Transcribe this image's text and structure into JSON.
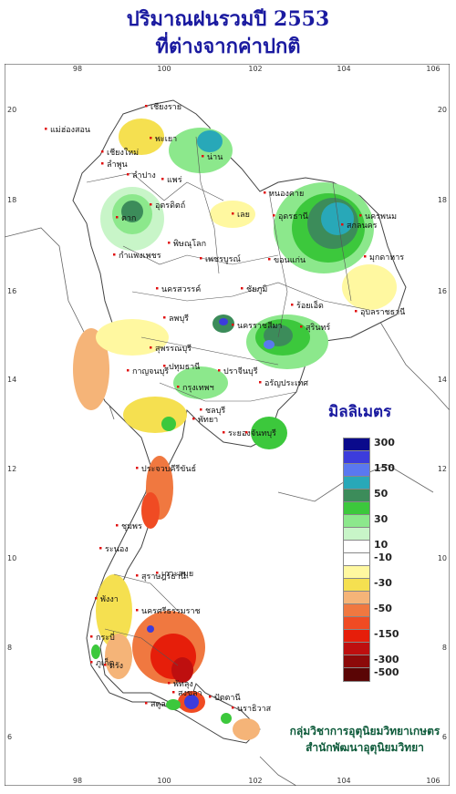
{
  "title_line1": "ปริมาณฝนรวมปี  2553",
  "title_line2": "ที่ต่างจากค่าปกติ",
  "legend": {
    "title": "มิลลิเมตร",
    "classes": [
      {
        "label": "300",
        "color": "#0a0a8c"
      },
      {
        "label": "",
        "color": "#3c3cdc"
      },
      {
        "label": "150",
        "color": "#5a78f0"
      },
      {
        "label": "",
        "color": "#28a8b8"
      },
      {
        "label": "50",
        "color": "#3c8c5a"
      },
      {
        "label": "",
        "color": "#3cc83c"
      },
      {
        "label": "30",
        "color": "#8ce88c"
      },
      {
        "label": "",
        "color": "#c8f5c8"
      },
      {
        "label": "10",
        "color": "#ffffff"
      },
      {
        "label": "-10",
        "color": "#ffffff"
      },
      {
        "label": "",
        "color": "#fff8a0"
      },
      {
        "label": "-30",
        "color": "#f5e050"
      },
      {
        "label": "",
        "color": "#f5b478"
      },
      {
        "label": "-50",
        "color": "#f07840"
      },
      {
        "label": "",
        "color": "#f04b23"
      },
      {
        "label": "-150",
        "color": "#e61e0a"
      },
      {
        "label": "",
        "color": "#be0f0f"
      },
      {
        "label": "-300",
        "color": "#8c0a0a"
      },
      {
        "label": "-500",
        "color": "#5a0505"
      }
    ]
  },
  "lon_ticks": [
    "98",
    "100",
    "102",
    "104",
    "106"
  ],
  "lat_ticks": [
    "20",
    "18",
    "16",
    "14",
    "12",
    "10",
    "8",
    "6"
  ],
  "places": [
    {
      "name": "เชียงราย"
    },
    {
      "name": "แม่ฮ่องสอน"
    },
    {
      "name": "พะเยา"
    },
    {
      "name": "เชียงใหม่"
    },
    {
      "name": "น่าน"
    },
    {
      "name": "ลำพูน"
    },
    {
      "name": "ลำปาง"
    },
    {
      "name": "แพร่"
    },
    {
      "name": "อุตรดิตถ์"
    },
    {
      "name": "ตาก"
    },
    {
      "name": "พิษณุโลก"
    },
    {
      "name": "เลย"
    },
    {
      "name": "หนองคาย"
    },
    {
      "name": "อุดรธานี"
    },
    {
      "name": "สกลนคร"
    },
    {
      "name": "นครพนม"
    },
    {
      "name": "มุกดาหาร"
    },
    {
      "name": "กำแพงเพชร"
    },
    {
      "name": "เพชรบูรณ์"
    },
    {
      "name": "ขอนแก่น"
    },
    {
      "name": "นครสวรรค์"
    },
    {
      "name": "ชัยภูมิ"
    },
    {
      "name": "ร้อยเอ็ด"
    },
    {
      "name": "อุบลราชธานี"
    },
    {
      "name": "ลพบุรี"
    },
    {
      "name": "นครราชสีมา"
    },
    {
      "name": "สุรินทร์"
    },
    {
      "name": "สุพรรณบุรี"
    },
    {
      "name": "กาญจนบุรี"
    },
    {
      "name": "ปทุมธานี"
    },
    {
      "name": "กรุงเทพฯ"
    },
    {
      "name": "ปราจีนบุรี"
    },
    {
      "name": "อรัญประเทศ"
    },
    {
      "name": "ชลบุรี"
    },
    {
      "name": "พัทยา"
    },
    {
      "name": "ระยอง"
    },
    {
      "name": "จันทบุรี"
    },
    {
      "name": "ประจวบคีรีขันธ์"
    },
    {
      "name": "ชุมพร"
    },
    {
      "name": "ระนอง"
    },
    {
      "name": "สุราษฎร์ธานี"
    },
    {
      "name": "เกาะสมุย"
    },
    {
      "name": "พังงา"
    },
    {
      "name": "นครศรีธรรมราช"
    },
    {
      "name": "กระบี่"
    },
    {
      "name": "ภูเก็ต"
    },
    {
      "name": "ตรัง"
    },
    {
      "name": "พัทลุง"
    },
    {
      "name": "สงขลา"
    },
    {
      "name": "สตูล"
    },
    {
      "name": "ปัตตานี"
    },
    {
      "name": "นราธิวาส"
    }
  ],
  "credit_line1": "กลุ่มวิชาการอุตุนิยมวิทยาเกษตร",
  "credit_line2": "สำนักพัฒนาอุตุนิยมวิทยา"
}
